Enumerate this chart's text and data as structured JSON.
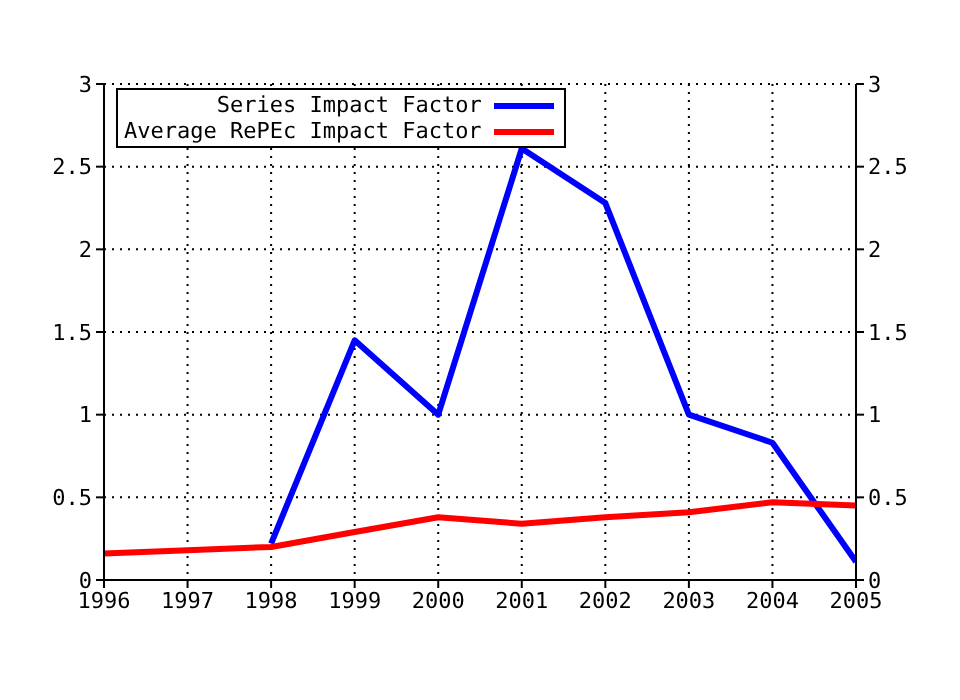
{
  "chart_data": {
    "type": "line",
    "x": [
      1996,
      1997,
      1998,
      1999,
      2000,
      2001,
      2002,
      2003,
      2004,
      2005
    ],
    "series": [
      {
        "name": "Series Impact Factor",
        "color": "#0000ff",
        "values": [
          null,
          null,
          0.22,
          1.45,
          1.0,
          2.61,
          2.28,
          1.0,
          0.83,
          0.11
        ]
      },
      {
        "name": "Average RePEc Impact Factor",
        "color": "#ff0000",
        "values": [
          0.16,
          0.18,
          0.2,
          0.29,
          0.38,
          0.34,
          0.38,
          0.41,
          0.47,
          0.45
        ]
      }
    ],
    "xlim": [
      1996,
      2005
    ],
    "xticks": [
      1996,
      1997,
      1998,
      1999,
      2000,
      2001,
      2002,
      2003,
      2004,
      2005
    ],
    "ylim": [
      0,
      3
    ],
    "yticks": [
      0,
      0.5,
      1,
      1.5,
      2,
      2.5,
      3
    ],
    "y2lim": [
      0,
      3
    ],
    "y2ticks": [
      0,
      0.5,
      1,
      1.5,
      2,
      2.5,
      3
    ],
    "grid": true,
    "legend": "top left",
    "marker": "none",
    "line_style": "solid"
  }
}
